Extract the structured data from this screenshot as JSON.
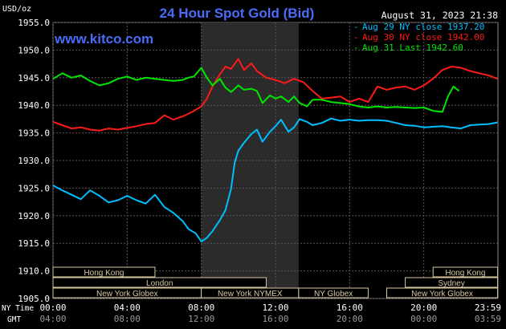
{
  "chart_data": {
    "type": "line",
    "title": "24 Hour Spot Gold (Bid)",
    "watermark": "www.kitco.com",
    "timestamp": "August 31, 2023 21:38",
    "ylabel": "USD/oz",
    "ylim": [
      1905,
      1955
    ],
    "yticks": [
      "1955.0",
      "1950.0",
      "1945.0",
      "1940.0",
      "1935.0",
      "1930.0",
      "1925.0",
      "1920.0",
      "1915.0",
      "1910.0",
      "1905.0"
    ],
    "xlim": [
      0,
      24
    ],
    "grid": true,
    "legend_position": "top-right",
    "xaxis_ny": {
      "label": "NY Time",
      "ticks": [
        "00:00",
        "04:00",
        "08:00",
        "12:00",
        "16:00",
        "20:00",
        "23:59"
      ]
    },
    "xaxis_gmt": {
      "label": "GMT",
      "ticks": [
        "04:00",
        "08:00",
        "12:00",
        "16:00",
        "20:00",
        "00:00",
        "03:59"
      ]
    },
    "tick_hours": [
      0,
      4,
      8,
      12,
      16,
      20,
      23.983
    ],
    "highlight_range": [
      8,
      13.25
    ],
    "sessions": [
      {
        "label": "Hong Kong",
        "start": 0,
        "end": 5.5,
        "row": 0
      },
      {
        "label": "London",
        "start": 0,
        "end": 11.5,
        "row": 1
      },
      {
        "label": "New York Globex",
        "start": 0,
        "end": 8.0,
        "row": 2
      },
      {
        "label": "New York NYMEX",
        "start": 8.0,
        "end": 13.25,
        "row": 2
      },
      {
        "label": "NY Globex",
        "start": 13.25,
        "end": 17.0,
        "row": 2
      },
      {
        "label": "Hong Kong",
        "start": 20.5,
        "end": 23.98,
        "row": 0
      },
      {
        "label": "Sydney",
        "start": 19.0,
        "end": 23.98,
        "row": 1
      },
      {
        "label": "New York Globex",
        "start": 18.0,
        "end": 23.98,
        "row": 2
      }
    ],
    "series": [
      {
        "name": "Aug 29 NY close 1937.20",
        "color": "#00bfff",
        "x": [
          0,
          0.5,
          1,
          1.5,
          2,
          2.5,
          3,
          3.5,
          4,
          4.5,
          5,
          5.5,
          6,
          6.5,
          7,
          7.3,
          7.7,
          8,
          8.3,
          8.6,
          9,
          9.3,
          9.6,
          9.8,
          10,
          10.3,
          10.7,
          11,
          11.3,
          11.7,
          12,
          12.3,
          12.7,
          13,
          13.3,
          13.7,
          14,
          14.5,
          15,
          15.5,
          16,
          16.5,
          17,
          17.5,
          18,
          18.5,
          19,
          19.5,
          20,
          20.5,
          21,
          21.5,
          22,
          22.5,
          23,
          23.5,
          23.98
        ],
        "y": [
          1925.5,
          1924.6,
          1923.8,
          1923.0,
          1924.6,
          1923.6,
          1922.4,
          1922.8,
          1923.6,
          1922.8,
          1922.2,
          1923.8,
          1921.6,
          1920.5,
          1919.0,
          1917.6,
          1916.8,
          1915.3,
          1916.0,
          1917.2,
          1919.2,
          1921.0,
          1924.8,
          1929.6,
          1931.8,
          1933.2,
          1934.8,
          1935.6,
          1933.4,
          1935.2,
          1936.2,
          1937.4,
          1935.2,
          1936.0,
          1937.5,
          1937.0,
          1936.4,
          1936.8,
          1937.6,
          1937.2,
          1937.4,
          1937.2,
          1937.3,
          1937.3,
          1937.2,
          1936.8,
          1936.4,
          1936.3,
          1936.0,
          1936.1,
          1936.2,
          1936.0,
          1935.8,
          1936.4,
          1936.5,
          1936.6,
          1936.9
        ]
      },
      {
        "name": "Aug 30 NY close 1942.00",
        "color": "#ff1a1a",
        "x": [
          0,
          0.5,
          1,
          1.5,
          2,
          2.5,
          3,
          3.5,
          4,
          4.5,
          5,
          5.5,
          6,
          6.5,
          7,
          7.5,
          8,
          8.3,
          8.6,
          9,
          9.3,
          9.6,
          10,
          10.3,
          10.7,
          11,
          11.5,
          12,
          12.5,
          13,
          13.5,
          14,
          14.5,
          15,
          15.5,
          16,
          16.5,
          17,
          17.5,
          18,
          18.5,
          19,
          19.5,
          20,
          20.5,
          21,
          21.5,
          22,
          22.5,
          23,
          23.5,
          23.98
        ],
        "y": [
          1937.0,
          1936.4,
          1935.8,
          1936.0,
          1935.6,
          1935.4,
          1935.8,
          1935.6,
          1935.9,
          1936.2,
          1936.6,
          1936.8,
          1938.2,
          1937.4,
          1938.0,
          1938.8,
          1939.8,
          1941.2,
          1943.4,
          1945.6,
          1947.0,
          1946.6,
          1948.4,
          1946.4,
          1947.6,
          1946.2,
          1945.0,
          1944.6,
          1944.0,
          1944.8,
          1944.2,
          1942.6,
          1941.2,
          1941.4,
          1941.6,
          1940.6,
          1941.2,
          1940.6,
          1943.4,
          1942.8,
          1943.2,
          1943.4,
          1942.8,
          1943.6,
          1944.8,
          1946.4,
          1947.0,
          1946.8,
          1946.2,
          1945.8,
          1945.4,
          1944.8
        ]
      },
      {
        "name": "Aug 31 Last 1942.60",
        "color": "#00e600",
        "x": [
          0,
          0.5,
          1,
          1.5,
          2,
          2.5,
          3,
          3.5,
          4,
          4.5,
          5,
          5.5,
          6,
          6.5,
          7,
          7.3,
          7.6,
          8,
          8.3,
          8.6,
          9,
          9.3,
          9.6,
          10,
          10.3,
          10.7,
          11,
          11.3,
          11.7,
          12,
          12.3,
          12.7,
          13,
          13.3,
          13.7,
          14,
          14.5,
          15,
          15.5,
          16,
          16.5,
          17,
          17.5,
          18,
          18.5,
          19,
          19.5,
          20,
          20.5,
          21,
          21.3,
          21.6,
          21.9
        ],
        "y": [
          1944.8,
          1945.8,
          1945.0,
          1945.4,
          1944.4,
          1943.6,
          1944.0,
          1944.8,
          1945.2,
          1944.6,
          1945.0,
          1944.8,
          1944.6,
          1944.4,
          1944.6,
          1945.0,
          1945.2,
          1946.8,
          1945.0,
          1943.6,
          1944.8,
          1943.2,
          1942.4,
          1943.6,
          1942.8,
          1943.0,
          1942.6,
          1940.4,
          1941.8,
          1941.2,
          1941.6,
          1940.6,
          1941.6,
          1940.4,
          1939.8,
          1941.0,
          1941.0,
          1940.6,
          1940.4,
          1940.2,
          1939.8,
          1939.6,
          1939.8,
          1939.6,
          1939.7,
          1939.6,
          1939.5,
          1939.6,
          1939.0,
          1938.8,
          1941.6,
          1943.4,
          1942.6
        ]
      }
    ]
  }
}
